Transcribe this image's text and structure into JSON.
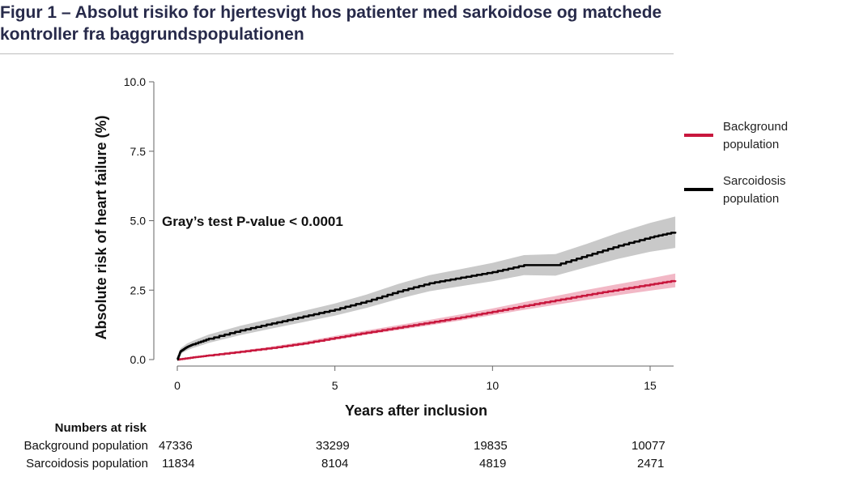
{
  "figure": {
    "title": "Figur 1 – Absolut risiko for hjertesvigt hos patienter med sarkoidose og matchede kontroller fra baggrundspopulationen"
  },
  "chart_data": {
    "type": "line",
    "xlabel": "Years after inclusion",
    "ylabel": "Absolute risk of heart failure (%)",
    "xlim": [
      0,
      15.8
    ],
    "ylim": [
      0,
      10
    ],
    "x_ticks": [
      "0",
      "5",
      "10",
      "15"
    ],
    "y_ticks": [
      "0.0",
      "2.5",
      "5.0",
      "7.5",
      "10.0"
    ],
    "annotation": "Gray’s test P-value < 0.0001",
    "legend_position": "right",
    "series": [
      {
        "name": "Background population",
        "color": "#c8173d",
        "ci_color": "#f2b8c6",
        "x": [
          0,
          0.5,
          1,
          2,
          3,
          4,
          5,
          6,
          7,
          8,
          9,
          10,
          11,
          12,
          13,
          14,
          15,
          15.8
        ],
        "y": [
          0.0,
          0.08,
          0.15,
          0.28,
          0.42,
          0.58,
          0.78,
          0.97,
          1.15,
          1.33,
          1.52,
          1.72,
          1.93,
          2.13,
          2.33,
          2.52,
          2.7,
          2.85
        ],
        "ci_lower": [
          0.0,
          0.06,
          0.12,
          0.24,
          0.37,
          0.52,
          0.71,
          0.89,
          1.06,
          1.23,
          1.41,
          1.6,
          1.79,
          1.97,
          2.15,
          2.32,
          2.48,
          2.6
        ],
        "ci_upper": [
          0.0,
          0.1,
          0.18,
          0.32,
          0.47,
          0.64,
          0.85,
          1.05,
          1.24,
          1.43,
          1.63,
          1.84,
          2.07,
          2.29,
          2.51,
          2.72,
          2.92,
          3.1
        ]
      },
      {
        "name": "Sarcoidosis population",
        "color": "#000000",
        "ci_color": "#c9c9c9",
        "x": [
          0,
          0.1,
          0.3,
          0.5,
          1,
          2,
          3,
          4,
          5,
          6,
          7,
          8,
          9,
          10,
          11,
          12,
          13,
          14,
          15,
          15.8
        ],
        "y": [
          0.0,
          0.3,
          0.45,
          0.55,
          0.75,
          1.05,
          1.3,
          1.55,
          1.8,
          2.1,
          2.45,
          2.75,
          2.95,
          3.15,
          3.4,
          3.4,
          3.75,
          4.1,
          4.4,
          4.6
        ],
        "ci_lower": [
          0.0,
          0.2,
          0.33,
          0.42,
          0.6,
          0.88,
          1.12,
          1.35,
          1.58,
          1.86,
          2.18,
          2.46,
          2.64,
          2.82,
          3.04,
          3.02,
          3.33,
          3.63,
          3.88,
          4.02
        ],
        "ci_upper": [
          0.0,
          0.4,
          0.57,
          0.68,
          0.9,
          1.22,
          1.48,
          1.75,
          2.02,
          2.34,
          2.72,
          3.04,
          3.26,
          3.48,
          3.76,
          3.8,
          4.17,
          4.57,
          4.92,
          5.15
        ]
      }
    ]
  },
  "risk_table": {
    "heading": "Numbers at risk",
    "rows": [
      {
        "label": "Background population",
        "values": [
          "47336",
          "33299",
          "19835",
          "10077"
        ]
      },
      {
        "label": "Sarcoidosis population",
        "values": [
          "11834",
          "8104",
          "4819",
          "2471"
        ]
      }
    ]
  }
}
